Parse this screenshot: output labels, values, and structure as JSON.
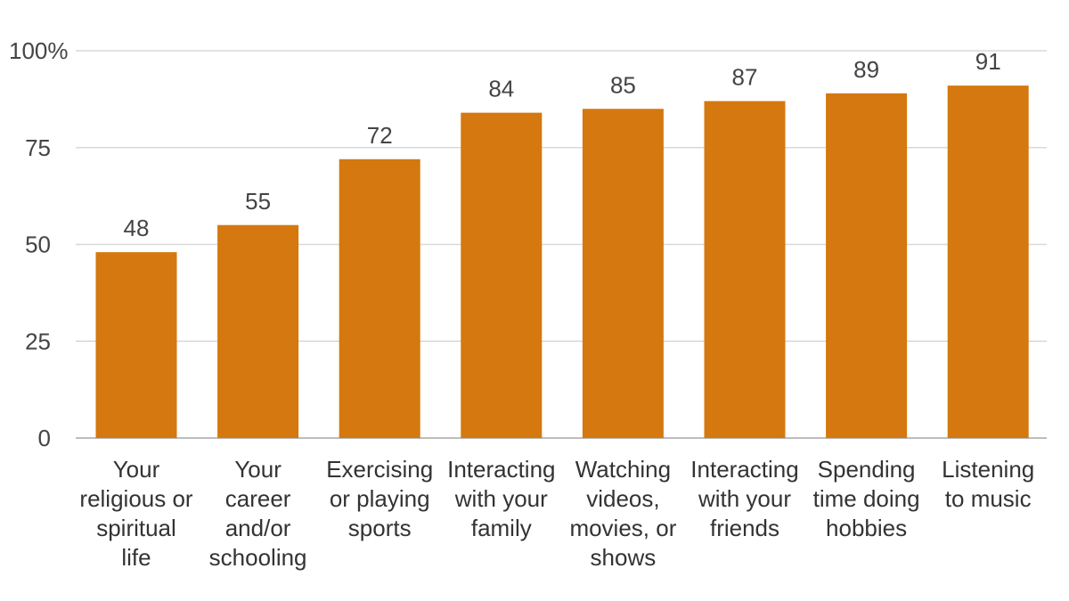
{
  "chart_data": {
    "type": "bar",
    "title": "",
    "xlabel": "",
    "ylabel": "",
    "ylim": [
      0,
      100
    ],
    "yticks": [
      0,
      25,
      50,
      75,
      100
    ],
    "ytick_labels": [
      "0",
      "25",
      "50",
      "75",
      "100%"
    ],
    "grid": true,
    "legend": "none",
    "bar_color": "#d4780f",
    "categories": [
      [
        "Your",
        "religious or",
        "spiritual",
        "life"
      ],
      [
        "Your",
        "career",
        "and/or",
        "schooling"
      ],
      [
        "Exercising",
        "or playing",
        "sports"
      ],
      [
        "Interacting",
        "with your",
        "family"
      ],
      [
        "Watching",
        "videos,",
        "movies, or",
        "shows"
      ],
      [
        "Interacting",
        "with your",
        "friends"
      ],
      [
        "Spending",
        "time doing",
        "hobbies"
      ],
      [
        "Listening",
        "to music"
      ]
    ],
    "values": [
      48,
      55,
      72,
      84,
      85,
      87,
      89,
      91
    ]
  }
}
